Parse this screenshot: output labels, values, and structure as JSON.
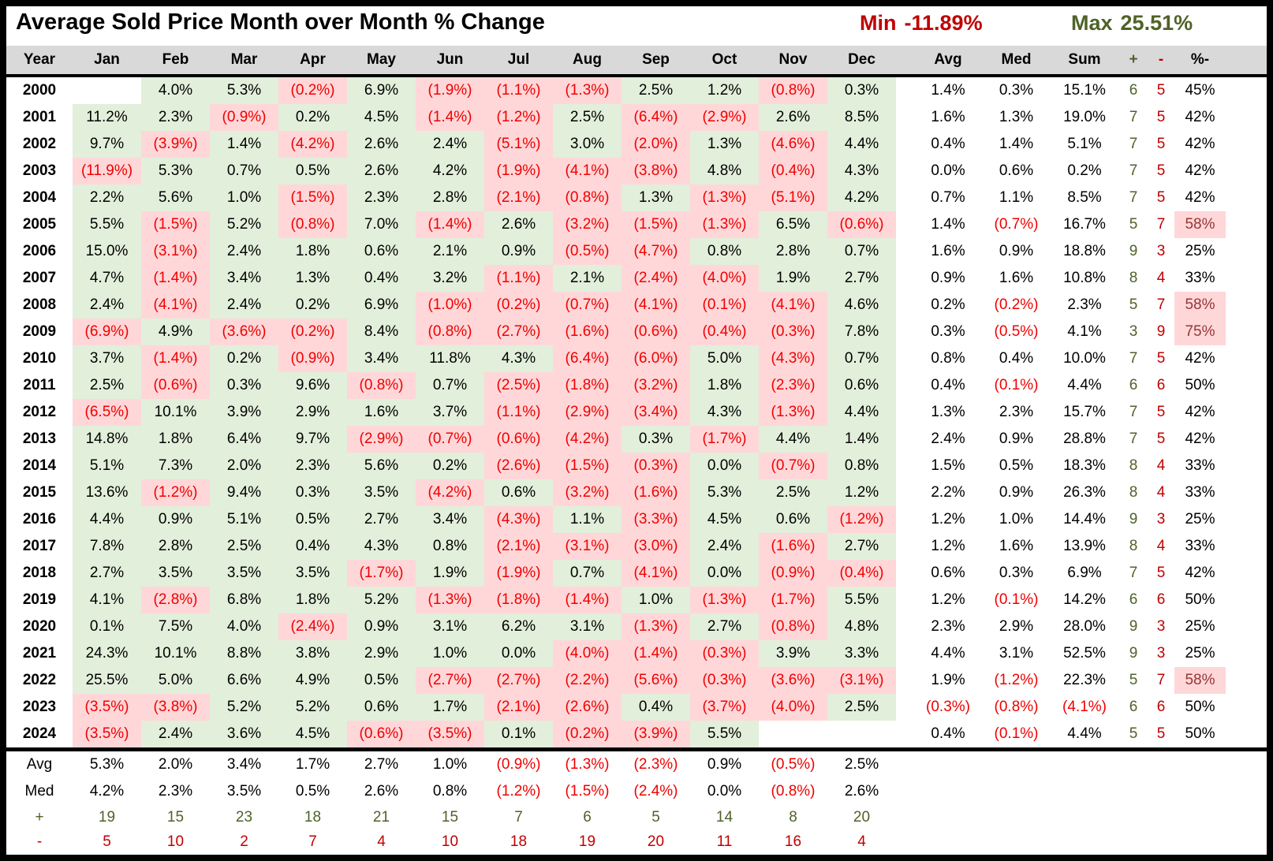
{
  "title": "Average Sold Price Month over Month % Change",
  "min_label": "Min",
  "min_value": "-11.89%",
  "max_label": "Max",
  "max_value": "25.51%",
  "chart_data": {
    "type": "table",
    "columns": [
      "Year",
      "Jan",
      "Feb",
      "Mar",
      "Apr",
      "May",
      "Jun",
      "Jul",
      "Aug",
      "Sep",
      "Oct",
      "Nov",
      "Dec",
      "Avg",
      "Med",
      "Sum",
      "+",
      "-",
      "%-"
    ],
    "colors": {
      "header_bg": "#d9d9d9",
      "positive_bg": "#e2efda",
      "negative_bg": "#ffd7d9",
      "negative_text": "#f00000",
      "plus": "#4f6228",
      "minus": "#c00000",
      "pct_hi_text": "#953735",
      "min_color": "#c00000",
      "max_color": "#4f6228"
    },
    "rows": [
      {
        "year": "2000",
        "months": [
          "",
          "4.0%",
          "5.3%",
          "(0.2%)",
          "6.9%",
          "(1.9%)",
          "(1.1%)",
          "(1.3%)",
          "2.5%",
          "1.2%",
          "(0.8%)",
          "0.3%"
        ],
        "avg": "1.4%",
        "med": "0.3%",
        "sum": "15.1%",
        "plus": "6",
        "minus": "5",
        "pct_minus": "45%"
      },
      {
        "year": "2001",
        "months": [
          "11.2%",
          "2.3%",
          "(0.9%)",
          "0.2%",
          "4.5%",
          "(1.4%)",
          "(1.2%)",
          "2.5%",
          "(6.4%)",
          "(2.9%)",
          "2.6%",
          "8.5%"
        ],
        "avg": "1.6%",
        "med": "1.3%",
        "sum": "19.0%",
        "plus": "7",
        "minus": "5",
        "pct_minus": "42%"
      },
      {
        "year": "2002",
        "months": [
          "9.7%",
          "(3.9%)",
          "1.4%",
          "(4.2%)",
          "2.6%",
          "2.4%",
          "(5.1%)",
          "3.0%",
          "(2.0%)",
          "1.3%",
          "(4.6%)",
          "4.4%"
        ],
        "avg": "0.4%",
        "med": "1.4%",
        "sum": "5.1%",
        "plus": "7",
        "minus": "5",
        "pct_minus": "42%"
      },
      {
        "year": "2003",
        "months": [
          "(11.9%)",
          "5.3%",
          "0.7%",
          "0.5%",
          "2.6%",
          "4.2%",
          "(1.9%)",
          "(4.1%)",
          "(3.8%)",
          "4.8%",
          "(0.4%)",
          "4.3%"
        ],
        "avg": "0.0%",
        "med": "0.6%",
        "sum": "0.2%",
        "plus": "7",
        "minus": "5",
        "pct_minus": "42%"
      },
      {
        "year": "2004",
        "months": [
          "2.2%",
          "5.6%",
          "1.0%",
          "(1.5%)",
          "2.3%",
          "2.8%",
          "(2.1%)",
          "(0.8%)",
          "1.3%",
          "(1.3%)",
          "(5.1%)",
          "4.2%"
        ],
        "avg": "0.7%",
        "med": "1.1%",
        "sum": "8.5%",
        "plus": "7",
        "minus": "5",
        "pct_minus": "42%"
      },
      {
        "year": "2005",
        "months": [
          "5.5%",
          "(1.5%)",
          "5.2%",
          "(0.8%)",
          "7.0%",
          "(1.4%)",
          "2.6%",
          "(3.2%)",
          "(1.5%)",
          "(1.3%)",
          "6.5%",
          "(0.6%)"
        ],
        "avg": "1.4%",
        "med": "(0.7%)",
        "sum": "16.7%",
        "plus": "5",
        "minus": "7",
        "pct_minus": "58%"
      },
      {
        "year": "2006",
        "months": [
          "15.0%",
          "(3.1%)",
          "2.4%",
          "1.8%",
          "0.6%",
          "2.1%",
          "0.9%",
          "(0.5%)",
          "(4.7%)",
          "0.8%",
          "2.8%",
          "0.7%"
        ],
        "avg": "1.6%",
        "med": "0.9%",
        "sum": "18.8%",
        "plus": "9",
        "minus": "3",
        "pct_minus": "25%"
      },
      {
        "year": "2007",
        "months": [
          "4.7%",
          "(1.4%)",
          "3.4%",
          "1.3%",
          "0.4%",
          "3.2%",
          "(1.1%)",
          "2.1%",
          "(2.4%)",
          "(4.0%)",
          "1.9%",
          "2.7%"
        ],
        "avg": "0.9%",
        "med": "1.6%",
        "sum": "10.8%",
        "plus": "8",
        "minus": "4",
        "pct_minus": "33%"
      },
      {
        "year": "2008",
        "months": [
          "2.4%",
          "(4.1%)",
          "2.4%",
          "0.2%",
          "6.9%",
          "(1.0%)",
          "(0.2%)",
          "(0.7%)",
          "(4.1%)",
          "(0.1%)",
          "(4.1%)",
          "4.6%"
        ],
        "avg": "0.2%",
        "med": "(0.2%)",
        "sum": "2.3%",
        "plus": "5",
        "minus": "7",
        "pct_minus": "58%"
      },
      {
        "year": "2009",
        "months": [
          "(6.9%)",
          "4.9%",
          "(3.6%)",
          "(0.2%)",
          "8.4%",
          "(0.8%)",
          "(2.7%)",
          "(1.6%)",
          "(0.6%)",
          "(0.4%)",
          "(0.3%)",
          "7.8%"
        ],
        "avg": "0.3%",
        "med": "(0.5%)",
        "sum": "4.1%",
        "plus": "3",
        "minus": "9",
        "pct_minus": "75%"
      },
      {
        "year": "2010",
        "months": [
          "3.7%",
          "(1.4%)",
          "0.2%",
          "(0.9%)",
          "3.4%",
          "11.8%",
          "4.3%",
          "(6.4%)",
          "(6.0%)",
          "5.0%",
          "(4.3%)",
          "0.7%"
        ],
        "avg": "0.8%",
        "med": "0.4%",
        "sum": "10.0%",
        "plus": "7",
        "minus": "5",
        "pct_minus": "42%"
      },
      {
        "year": "2011",
        "months": [
          "2.5%",
          "(0.6%)",
          "0.3%",
          "9.6%",
          "(0.8%)",
          "0.7%",
          "(2.5%)",
          "(1.8%)",
          "(3.2%)",
          "1.8%",
          "(2.3%)",
          "0.6%"
        ],
        "avg": "0.4%",
        "med": "(0.1%)",
        "sum": "4.4%",
        "plus": "6",
        "minus": "6",
        "pct_minus": "50%"
      },
      {
        "year": "2012",
        "months": [
          "(6.5%)",
          "10.1%",
          "3.9%",
          "2.9%",
          "1.6%",
          "3.7%",
          "(1.1%)",
          "(2.9%)",
          "(3.4%)",
          "4.3%",
          "(1.3%)",
          "4.4%"
        ],
        "avg": "1.3%",
        "med": "2.3%",
        "sum": "15.7%",
        "plus": "7",
        "minus": "5",
        "pct_minus": "42%"
      },
      {
        "year": "2013",
        "months": [
          "14.8%",
          "1.8%",
          "6.4%",
          "9.7%",
          "(2.9%)",
          "(0.7%)",
          "(0.6%)",
          "(4.2%)",
          "0.3%",
          "(1.7%)",
          "4.4%",
          "1.4%"
        ],
        "avg": "2.4%",
        "med": "0.9%",
        "sum": "28.8%",
        "plus": "7",
        "minus": "5",
        "pct_minus": "42%"
      },
      {
        "year": "2014",
        "months": [
          "5.1%",
          "7.3%",
          "2.0%",
          "2.3%",
          "5.6%",
          "0.2%",
          "(2.6%)",
          "(1.5%)",
          "(0.3%)",
          "0.0%",
          "(0.7%)",
          "0.8%"
        ],
        "avg": "1.5%",
        "med": "0.5%",
        "sum": "18.3%",
        "plus": "8",
        "minus": "4",
        "pct_minus": "33%"
      },
      {
        "year": "2015",
        "months": [
          "13.6%",
          "(1.2%)",
          "9.4%",
          "0.3%",
          "3.5%",
          "(4.2%)",
          "0.6%",
          "(3.2%)",
          "(1.6%)",
          "5.3%",
          "2.5%",
          "1.2%"
        ],
        "avg": "2.2%",
        "med": "0.9%",
        "sum": "26.3%",
        "plus": "8",
        "minus": "4",
        "pct_minus": "33%"
      },
      {
        "year": "2016",
        "months": [
          "4.4%",
          "0.9%",
          "5.1%",
          "0.5%",
          "2.7%",
          "3.4%",
          "(4.3%)",
          "1.1%",
          "(3.3%)",
          "4.5%",
          "0.6%",
          "(1.2%)"
        ],
        "avg": "1.2%",
        "med": "1.0%",
        "sum": "14.4%",
        "plus": "9",
        "minus": "3",
        "pct_minus": "25%"
      },
      {
        "year": "2017",
        "months": [
          "7.8%",
          "2.8%",
          "2.5%",
          "0.4%",
          "4.3%",
          "0.8%",
          "(2.1%)",
          "(3.1%)",
          "(3.0%)",
          "2.4%",
          "(1.6%)",
          "2.7%"
        ],
        "avg": "1.2%",
        "med": "1.6%",
        "sum": "13.9%",
        "plus": "8",
        "minus": "4",
        "pct_minus": "33%"
      },
      {
        "year": "2018",
        "months": [
          "2.7%",
          "3.5%",
          "3.5%",
          "3.5%",
          "(1.7%)",
          "1.9%",
          "(1.9%)",
          "0.7%",
          "(4.1%)",
          "0.0%",
          "(0.9%)",
          "(0.4%)"
        ],
        "avg": "0.6%",
        "med": "0.3%",
        "sum": "6.9%",
        "plus": "7",
        "minus": "5",
        "pct_minus": "42%"
      },
      {
        "year": "2019",
        "months": [
          "4.1%",
          "(2.8%)",
          "6.8%",
          "1.8%",
          "5.2%",
          "(1.3%)",
          "(1.8%)",
          "(1.4%)",
          "1.0%",
          "(1.3%)",
          "(1.7%)",
          "5.5%"
        ],
        "avg": "1.2%",
        "med": "(0.1%)",
        "sum": "14.2%",
        "plus": "6",
        "minus": "6",
        "pct_minus": "50%"
      },
      {
        "year": "2020",
        "months": [
          "0.1%",
          "7.5%",
          "4.0%",
          "(2.4%)",
          "0.9%",
          "3.1%",
          "6.2%",
          "3.1%",
          "(1.3%)",
          "2.7%",
          "(0.8%)",
          "4.8%"
        ],
        "avg": "2.3%",
        "med": "2.9%",
        "sum": "28.0%",
        "plus": "9",
        "minus": "3",
        "pct_minus": "25%"
      },
      {
        "year": "2021",
        "months": [
          "24.3%",
          "10.1%",
          "8.8%",
          "3.8%",
          "2.9%",
          "1.0%",
          "0.0%",
          "(4.0%)",
          "(1.4%)",
          "(0.3%)",
          "3.9%",
          "3.3%"
        ],
        "avg": "4.4%",
        "med": "3.1%",
        "sum": "52.5%",
        "plus": "9",
        "minus": "3",
        "pct_minus": "25%"
      },
      {
        "year": "2022",
        "months": [
          "25.5%",
          "5.0%",
          "6.6%",
          "4.9%",
          "0.5%",
          "(2.7%)",
          "(2.7%)",
          "(2.2%)",
          "(5.6%)",
          "(0.3%)",
          "(3.6%)",
          "(3.1%)"
        ],
        "avg": "1.9%",
        "med": "(1.2%)",
        "sum": "22.3%",
        "plus": "5",
        "minus": "7",
        "pct_minus": "58%"
      },
      {
        "year": "2023",
        "months": [
          "(3.5%)",
          "(3.8%)",
          "5.2%",
          "5.2%",
          "0.6%",
          "1.7%",
          "(2.1%)",
          "(2.6%)",
          "0.4%",
          "(3.7%)",
          "(4.0%)",
          "2.5%"
        ],
        "avg": "(0.3%)",
        "med": "(0.8%)",
        "sum": "(4.1%)",
        "plus": "6",
        "minus": "6",
        "pct_minus": "50%"
      },
      {
        "year": "2024",
        "months": [
          "(3.5%)",
          "2.4%",
          "3.6%",
          "4.5%",
          "(0.6%)",
          "(3.5%)",
          "0.1%",
          "(0.2%)",
          "(3.9%)",
          "5.5%",
          "",
          ""
        ],
        "avg": "0.4%",
        "med": "(0.1%)",
        "sum": "4.4%",
        "plus": "5",
        "minus": "5",
        "pct_minus": "50%"
      }
    ],
    "summary_rows": [
      {
        "label": "Avg",
        "kind": "avg",
        "values": [
          "5.3%",
          "2.0%",
          "3.4%",
          "1.7%",
          "2.7%",
          "1.0%",
          "(0.9%)",
          "(1.3%)",
          "(2.3%)",
          "0.9%",
          "(0.5%)",
          "2.5%"
        ]
      },
      {
        "label": "Med",
        "kind": "med",
        "values": [
          "4.2%",
          "2.3%",
          "3.5%",
          "0.5%",
          "2.6%",
          "0.8%",
          "(1.2%)",
          "(1.5%)",
          "(2.4%)",
          "0.0%",
          "(0.8%)",
          "2.6%"
        ]
      },
      {
        "label": "+",
        "kind": "plus",
        "values": [
          "19",
          "15",
          "23",
          "18",
          "21",
          "15",
          "7",
          "6",
          "5",
          "14",
          "8",
          "20"
        ]
      },
      {
        "label": "-",
        "kind": "minus",
        "values": [
          "5",
          "10",
          "2",
          "7",
          "4",
          "10",
          "18",
          "19",
          "20",
          "11",
          "16",
          "4"
        ]
      }
    ]
  }
}
